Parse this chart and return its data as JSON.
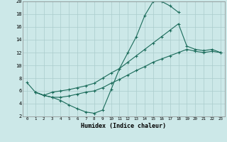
{
  "xlabel": "Humidex (Indice chaleur)",
  "xlim": [
    -0.5,
    23.5
  ],
  "ylim": [
    2,
    20
  ],
  "xticks": [
    0,
    1,
    2,
    3,
    4,
    5,
    6,
    7,
    8,
    9,
    10,
    11,
    12,
    13,
    14,
    15,
    16,
    17,
    18,
    19,
    20,
    21,
    22,
    23
  ],
  "yticks": [
    2,
    4,
    6,
    8,
    10,
    12,
    14,
    16,
    18,
    20
  ],
  "bg_color": "#cce8e8",
  "grid_color": "#aacccc",
  "line_color": "#1a6b5a",
  "line1_x": [
    0,
    1,
    2,
    3,
    4,
    5,
    6,
    7,
    8,
    9,
    10,
    11,
    12,
    13,
    14,
    15,
    16,
    17,
    18
  ],
  "line1_y": [
    7.3,
    5.8,
    5.3,
    5.0,
    4.5,
    3.8,
    3.2,
    2.7,
    2.5,
    3.0,
    6.2,
    9.5,
    12.0,
    14.5,
    17.8,
    20.0,
    20.0,
    19.3,
    18.3
  ],
  "line2_x": [
    1,
    2,
    3,
    4,
    5,
    6,
    7,
    8,
    9,
    10,
    11,
    12,
    13,
    14,
    15,
    16,
    17,
    18,
    19,
    20,
    21,
    22,
    23
  ],
  "line2_y": [
    5.8,
    5.3,
    5.8,
    6.0,
    6.2,
    6.5,
    6.8,
    7.2,
    8.0,
    8.8,
    9.5,
    10.5,
    11.5,
    12.5,
    13.5,
    14.5,
    15.5,
    16.5,
    13.0,
    12.5,
    12.3,
    12.5,
    12.0
  ],
  "line3_x": [
    1,
    2,
    3,
    4,
    5,
    6,
    7,
    8,
    9,
    10,
    11,
    12,
    13,
    14,
    15,
    16,
    17,
    18,
    19,
    20,
    21,
    22,
    23
  ],
  "line3_y": [
    5.8,
    5.3,
    5.0,
    5.0,
    5.2,
    5.5,
    5.8,
    6.0,
    6.5,
    7.2,
    7.8,
    8.5,
    9.2,
    9.8,
    10.5,
    11.0,
    11.5,
    12.0,
    12.5,
    12.2,
    12.0,
    12.2,
    12.0
  ]
}
